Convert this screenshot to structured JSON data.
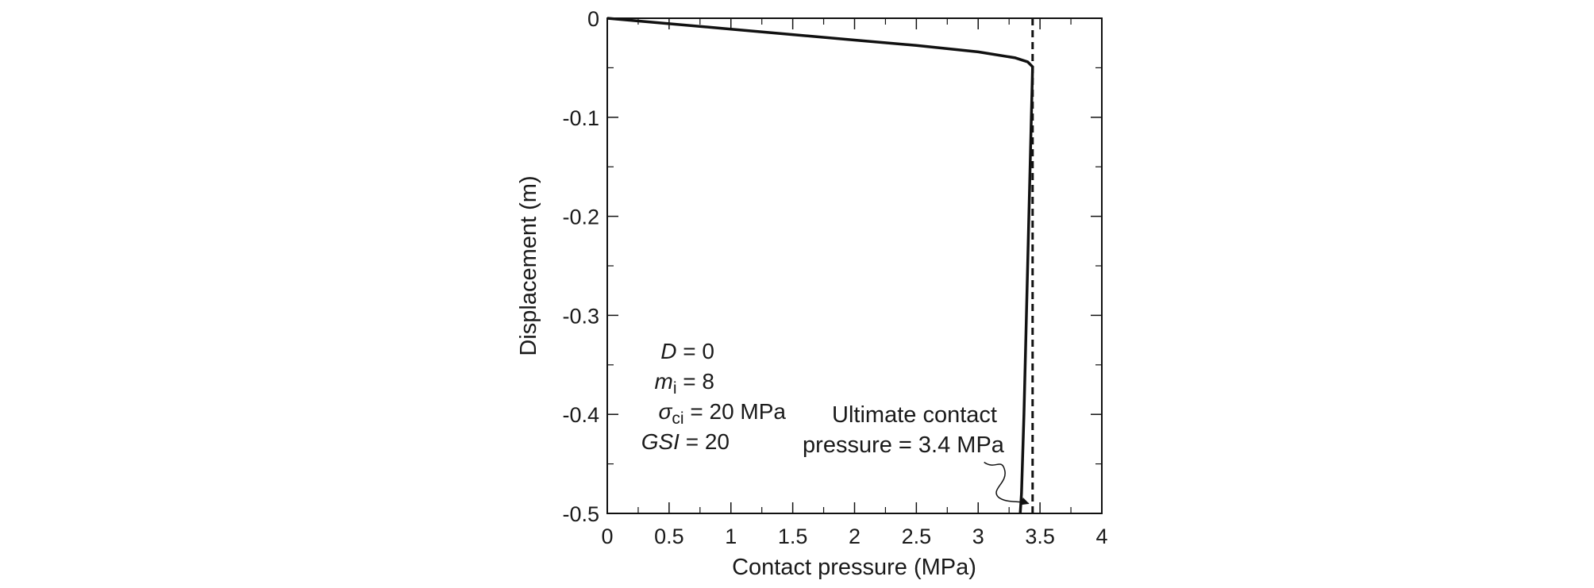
{
  "chart_data": {
    "type": "line",
    "xlabel": "Contact pressure (MPa)",
    "ylabel": "Displacement (m)",
    "xlim": [
      0,
      4
    ],
    "ylim": [
      -0.5,
      0
    ],
    "x_ticks": [
      0,
      0.5,
      1,
      1.5,
      2,
      2.5,
      3,
      3.5,
      4
    ],
    "x_tick_labels": [
      "0",
      "0.5",
      "1",
      "1.5",
      "2",
      "2.5",
      "3",
      "3.5",
      "4"
    ],
    "y_ticks": [
      0,
      -0.1,
      -0.2,
      -0.3,
      -0.4,
      -0.5
    ],
    "y_tick_labels": [
      "0",
      "-0.1",
      "-0.2",
      "-0.3",
      "-0.4",
      "-0.5"
    ],
    "grid": false,
    "series": [
      {
        "style": "solid",
        "x": [
          0,
          0.5,
          1.0,
          1.5,
          2.0,
          2.5,
          3.0,
          3.3,
          3.4,
          3.44,
          3.43,
          3.41,
          3.39,
          3.37,
          3.35,
          3.34
        ],
        "y": [
          0,
          -0.0055,
          -0.011,
          -0.0165,
          -0.022,
          -0.0275,
          -0.034,
          -0.04,
          -0.044,
          -0.049,
          -0.1,
          -0.2,
          -0.3,
          -0.4,
          -0.48,
          -0.5
        ]
      },
      {
        "style": "dashed",
        "x": [
          3.44,
          3.44
        ],
        "y": [
          0,
          -0.5
        ]
      }
    ],
    "parameters": {
      "D_symbol": "D",
      "D_value": " = 0",
      "mi_symbol": "m",
      "mi_sub": "i",
      "mi_value": " = 8",
      "sci_symbol": "σ",
      "sci_sub": "ci",
      "sci_value": " = 20 MPa",
      "gsi_symbol": "GSI",
      "gsi_value": " = 20"
    },
    "annotation": {
      "line1": "Ultimate contact",
      "line2": "pressure = 3.4 MPa",
      "target_x": 3.42,
      "target_y": -0.49
    }
  }
}
